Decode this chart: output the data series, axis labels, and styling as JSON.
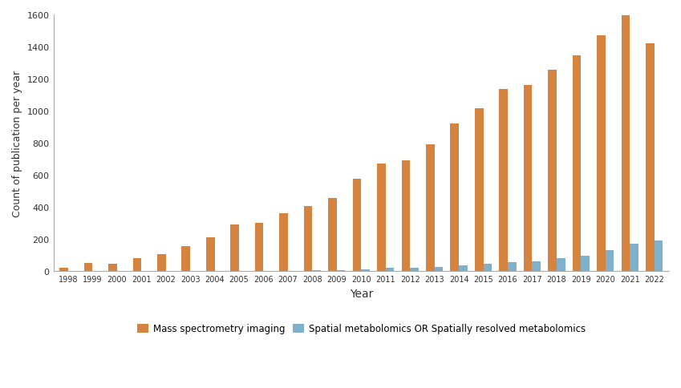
{
  "years": [
    1998,
    1999,
    2000,
    2001,
    2002,
    2003,
    2004,
    2005,
    2006,
    2007,
    2008,
    2009,
    2010,
    2011,
    2012,
    2013,
    2014,
    2015,
    2016,
    2017,
    2018,
    2019,
    2020,
    2021,
    2022
  ],
  "mass_spec": [
    20,
    50,
    45,
    80,
    105,
    155,
    210,
    290,
    300,
    360,
    405,
    455,
    575,
    670,
    690,
    790,
    920,
    1015,
    1135,
    1160,
    1255,
    1345,
    1470,
    1595,
    1420
  ],
  "spatial_metab": [
    2,
    2,
    2,
    2,
    2,
    2,
    2,
    2,
    2,
    2,
    5,
    8,
    12,
    20,
    20,
    25,
    35,
    48,
    58,
    62,
    80,
    95,
    132,
    170,
    190
  ],
  "color_mass_spec": "#d4843e",
  "color_spatial": "#7fb0cc",
  "ylabel": "Count of publication per year",
  "xlabel": "Year",
  "ylim": [
    0,
    1600
  ],
  "yticks": [
    0,
    200,
    400,
    600,
    800,
    1000,
    1200,
    1400,
    1600
  ],
  "legend_mass_spec": "Mass spectrometry imaging",
  "legend_spatial": "Spatial metabolomics OR Spatially resolved metabolomics",
  "background_color": "#ffffff",
  "bar_width": 0.35
}
